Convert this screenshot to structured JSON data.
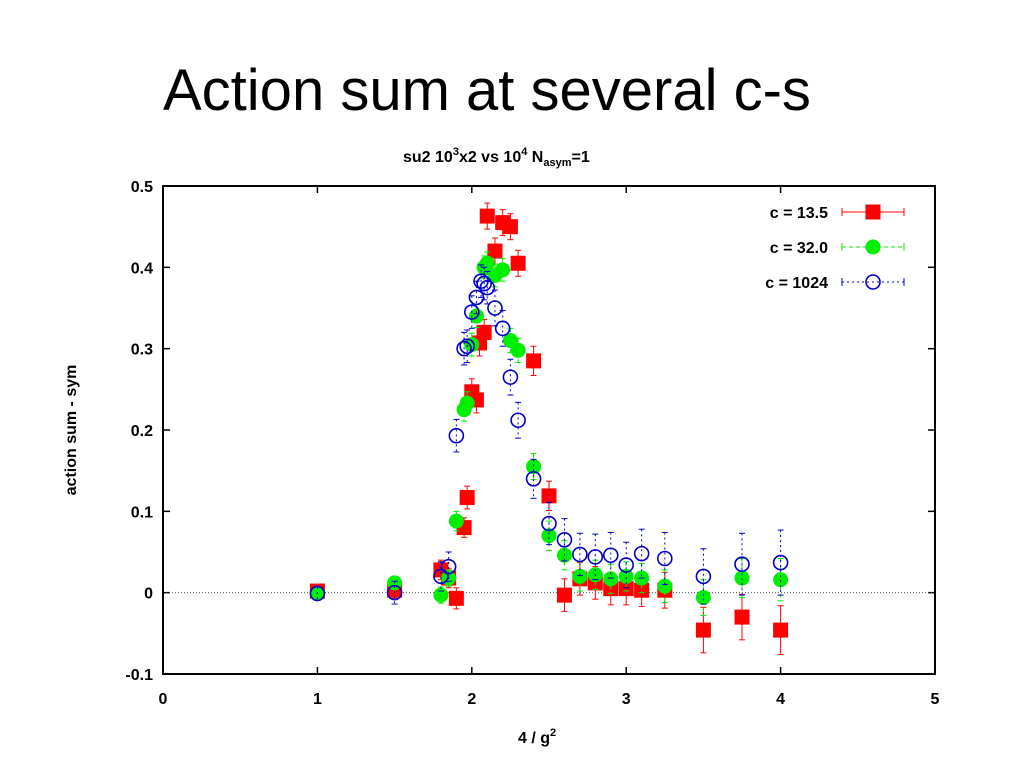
{
  "slide": {
    "title": "Action sum at several c-s"
  },
  "chart_data": {
    "type": "scatter",
    "title": {
      "prefix": "su2 10",
      "sup1": "3",
      "mid": "x2 vs 10",
      "sup2": "4",
      "n": " N",
      "sub": "asym",
      "suffix": "=1"
    },
    "xlabel": {
      "text": "4 / g",
      "sup": "2"
    },
    "ylabel": "action sum - sym",
    "xlim": [
      0,
      5
    ],
    "ylim": [
      -0.1,
      0.5
    ],
    "xticks": [
      "0",
      "1",
      "2",
      "3",
      "4",
      "5"
    ],
    "yticks": [
      "-0.1",
      "0",
      "0.1",
      "0.2",
      "0.3",
      "0.4",
      "0.5"
    ],
    "zero_line": true,
    "legend_position": "top-right",
    "series": [
      {
        "name": "c = 13.5",
        "color": "#ff0000",
        "marker": "filled-square",
        "points": [
          {
            "x": 1.0,
            "y": 0.002,
            "err": 0.006
          },
          {
            "x": 1.5,
            "y": 0.003,
            "err": 0.01
          },
          {
            "x": 1.8,
            "y": 0.028,
            "err": 0.012
          },
          {
            "x": 1.85,
            "y": 0.018,
            "err": 0.012
          },
          {
            "x": 1.9,
            "y": -0.007,
            "err": 0.013
          },
          {
            "x": 1.95,
            "y": 0.08,
            "err": 0.012
          },
          {
            "x": 1.97,
            "y": 0.117,
            "err": 0.014
          },
          {
            "x": 2.0,
            "y": 0.247,
            "err": 0.016
          },
          {
            "x": 2.03,
            "y": 0.237,
            "err": 0.016
          },
          {
            "x": 2.05,
            "y": 0.307,
            "err": 0.016
          },
          {
            "x": 2.08,
            "y": 0.32,
            "err": 0.016
          },
          {
            "x": 2.1,
            "y": 0.463,
            "err": 0.016
          },
          {
            "x": 2.15,
            "y": 0.42,
            "err": 0.016
          },
          {
            "x": 2.2,
            "y": 0.455,
            "err": 0.016
          },
          {
            "x": 2.25,
            "y": 0.45,
            "err": 0.016
          },
          {
            "x": 2.3,
            "y": 0.405,
            "err": 0.016
          },
          {
            "x": 2.4,
            "y": 0.285,
            "err": 0.018
          },
          {
            "x": 2.5,
            "y": 0.119,
            "err": 0.018
          },
          {
            "x": 2.6,
            "y": -0.003,
            "err": 0.02
          },
          {
            "x": 2.7,
            "y": 0.017,
            "err": 0.02
          },
          {
            "x": 2.8,
            "y": 0.012,
            "err": 0.02
          },
          {
            "x": 2.9,
            "y": 0.005,
            "err": 0.02
          },
          {
            "x": 3.0,
            "y": 0.005,
            "err": 0.02
          },
          {
            "x": 3.1,
            "y": 0.003,
            "err": 0.02
          },
          {
            "x": 3.25,
            "y": 0.003,
            "err": 0.022
          },
          {
            "x": 3.5,
            "y": -0.046,
            "err": 0.028
          },
          {
            "x": 3.75,
            "y": -0.03,
            "err": 0.028
          },
          {
            "x": 4.0,
            "y": -0.046,
            "err": 0.03
          }
        ]
      },
      {
        "name": "c = 32.0",
        "color": "#00ee00",
        "marker": "filled-circle",
        "points": [
          {
            "x": 1.0,
            "y": -0.001,
            "err": 0.005
          },
          {
            "x": 1.5,
            "y": 0.012,
            "err": 0.008
          },
          {
            "x": 1.8,
            "y": -0.003,
            "err": 0.01
          },
          {
            "x": 1.85,
            "y": 0.018,
            "err": 0.01
          },
          {
            "x": 1.9,
            "y": 0.088,
            "err": 0.012
          },
          {
            "x": 1.95,
            "y": 0.225,
            "err": 0.014
          },
          {
            "x": 1.97,
            "y": 0.233,
            "err": 0.014
          },
          {
            "x": 2.0,
            "y": 0.305,
            "err": 0.014
          },
          {
            "x": 2.03,
            "y": 0.34,
            "err": 0.014
          },
          {
            "x": 2.08,
            "y": 0.4,
            "err": 0.014
          },
          {
            "x": 2.1,
            "y": 0.405,
            "err": 0.014
          },
          {
            "x": 2.15,
            "y": 0.39,
            "err": 0.014
          },
          {
            "x": 2.2,
            "y": 0.397,
            "err": 0.014
          },
          {
            "x": 2.25,
            "y": 0.31,
            "err": 0.015
          },
          {
            "x": 2.3,
            "y": 0.298,
            "err": 0.015
          },
          {
            "x": 2.4,
            "y": 0.155,
            "err": 0.016
          },
          {
            "x": 2.5,
            "y": 0.07,
            "err": 0.018
          },
          {
            "x": 2.6,
            "y": 0.046,
            "err": 0.018
          },
          {
            "x": 2.7,
            "y": 0.02,
            "err": 0.018
          },
          {
            "x": 2.8,
            "y": 0.022,
            "err": 0.018
          },
          {
            "x": 2.9,
            "y": 0.017,
            "err": 0.018
          },
          {
            "x": 3.0,
            "y": 0.02,
            "err": 0.018
          },
          {
            "x": 3.1,
            "y": 0.018,
            "err": 0.018
          },
          {
            "x": 3.25,
            "y": 0.008,
            "err": 0.02
          },
          {
            "x": 3.5,
            "y": -0.006,
            "err": 0.022
          },
          {
            "x": 3.75,
            "y": 0.018,
            "err": 0.024
          },
          {
            "x": 4.0,
            "y": 0.016,
            "err": 0.026
          }
        ]
      },
      {
        "name": "c = 1024",
        "color": "#0000cc",
        "marker": "open-circle",
        "points": [
          {
            "x": 1.0,
            "y": -0.001,
            "err": 0.008
          },
          {
            "x": 1.5,
            "y": 0.0,
            "err": 0.014
          },
          {
            "x": 1.8,
            "y": 0.02,
            "err": 0.018
          },
          {
            "x": 1.85,
            "y": 0.032,
            "err": 0.018
          },
          {
            "x": 1.9,
            "y": 0.193,
            "err": 0.02
          },
          {
            "x": 1.95,
            "y": 0.3,
            "err": 0.02
          },
          {
            "x": 1.97,
            "y": 0.303,
            "err": 0.02
          },
          {
            "x": 2.0,
            "y": 0.345,
            "err": 0.02
          },
          {
            "x": 2.03,
            "y": 0.363,
            "err": 0.02
          },
          {
            "x": 2.06,
            "y": 0.383,
            "err": 0.02
          },
          {
            "x": 2.08,
            "y": 0.38,
            "err": 0.02
          },
          {
            "x": 2.1,
            "y": 0.375,
            "err": 0.02
          },
          {
            "x": 2.15,
            "y": 0.35,
            "err": 0.022
          },
          {
            "x": 2.2,
            "y": 0.325,
            "err": 0.022
          },
          {
            "x": 2.25,
            "y": 0.265,
            "err": 0.022
          },
          {
            "x": 2.3,
            "y": 0.212,
            "err": 0.022
          },
          {
            "x": 2.4,
            "y": 0.14,
            "err": 0.024
          },
          {
            "x": 2.5,
            "y": 0.085,
            "err": 0.026
          },
          {
            "x": 2.6,
            "y": 0.065,
            "err": 0.026
          },
          {
            "x": 2.7,
            "y": 0.047,
            "err": 0.026
          },
          {
            "x": 2.8,
            "y": 0.044,
            "err": 0.028
          },
          {
            "x": 2.9,
            "y": 0.046,
            "err": 0.028
          },
          {
            "x": 3.0,
            "y": 0.034,
            "err": 0.028
          },
          {
            "x": 3.1,
            "y": 0.048,
            "err": 0.03
          },
          {
            "x": 3.25,
            "y": 0.042,
            "err": 0.032
          },
          {
            "x": 3.5,
            "y": 0.02,
            "err": 0.034
          },
          {
            "x": 3.75,
            "y": 0.035,
            "err": 0.038
          },
          {
            "x": 4.0,
            "y": 0.037,
            "err": 0.04
          }
        ]
      }
    ]
  }
}
